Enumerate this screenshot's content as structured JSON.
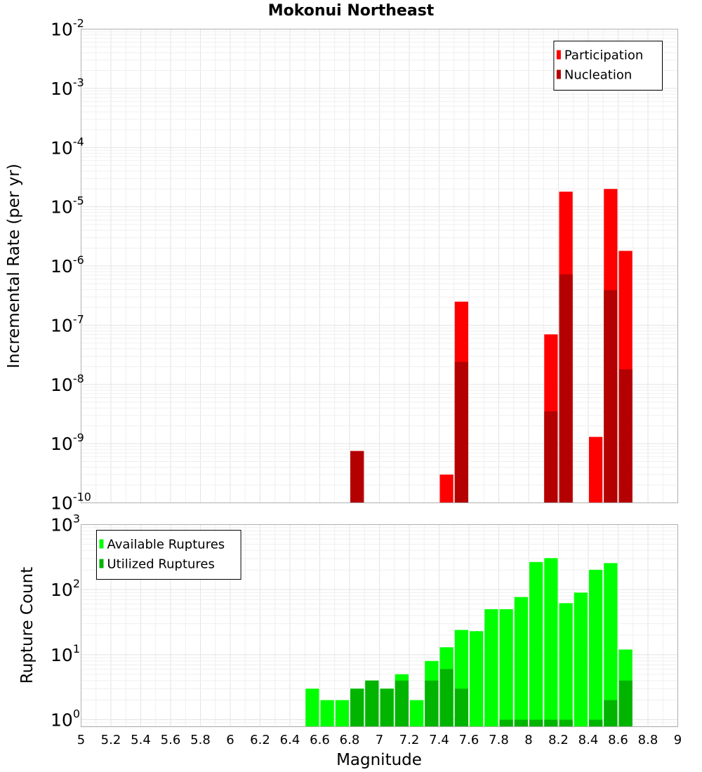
{
  "chart_data": [
    {
      "type": "bar",
      "title": "Mokonui Northeast",
      "xlabel": "",
      "ylabel": "Incremental Rate (per yr)",
      "xlim": [
        5,
        9
      ],
      "ylim": [
        1e-10,
        0.01
      ],
      "yscale": "log",
      "bin_width": 0.1,
      "grid": true,
      "legend": "top-right",
      "x": [
        6.85,
        7.45,
        7.55,
        8.15,
        8.25,
        8.45,
        8.55,
        8.65
      ],
      "series": [
        {
          "name": "Participation",
          "color": "#ff0000",
          "values": [
            7.5e-10,
            3e-10,
            2.5e-07,
            7e-08,
            1.8e-05,
            1.3e-09,
            2e-05,
            1.8e-06
          ]
        },
        {
          "name": "Nucleation",
          "color": "#b40000",
          "values": [
            7.5e-10,
            null,
            2.4e-08,
            3.5e-09,
            7.2e-07,
            null,
            3.9e-07,
            1.8e-08
          ]
        }
      ],
      "yticks": [
        {
          "base": "10",
          "exp": "-2",
          "value": 0.01
        },
        {
          "base": "10",
          "exp": "-3",
          "value": 0.001
        },
        {
          "base": "10",
          "exp": "-4",
          "value": 0.0001
        },
        {
          "base": "10",
          "exp": "-5",
          "value": 1e-05
        },
        {
          "base": "10",
          "exp": "-6",
          "value": 1e-06
        },
        {
          "base": "10",
          "exp": "-7",
          "value": 1e-07
        },
        {
          "base": "10",
          "exp": "-8",
          "value": 1e-08
        },
        {
          "base": "10",
          "exp": "-9",
          "value": 1e-09
        },
        {
          "base": "10",
          "exp": "-10",
          "value": 1e-10
        }
      ]
    },
    {
      "type": "bar",
      "title": "",
      "xlabel": "Magnitude",
      "ylabel": "Rupture Count",
      "xlim": [
        5,
        9
      ],
      "ylim": [
        0.78,
        1000
      ],
      "yscale": "log",
      "bin_width": 0.1,
      "grid": true,
      "legend": "top-left",
      "x": [
        6.55,
        6.65,
        6.75,
        6.85,
        6.95,
        7.05,
        7.15,
        7.25,
        7.35,
        7.45,
        7.55,
        7.65,
        7.75,
        7.85,
        7.95,
        8.05,
        8.15,
        8.25,
        8.35,
        8.45,
        8.55,
        8.65
      ],
      "series": [
        {
          "name": "Available Ruptures",
          "color": "#00ff00",
          "values": [
            3,
            2,
            2,
            3,
            4,
            3,
            5,
            2,
            8,
            13,
            24,
            23,
            50,
            50,
            77,
            266,
            305,
            62,
            90,
            202,
            256,
            12
          ]
        },
        {
          "name": "Utilized Ruptures",
          "color": "#00b400",
          "values": [
            null,
            null,
            null,
            3,
            4,
            3,
            4,
            null,
            4,
            6,
            3,
            null,
            null,
            1,
            1,
            1,
            1,
            1,
            null,
            1,
            2,
            4
          ]
        }
      ],
      "xticks": [
        "5",
        "5.2",
        "5.4",
        "5.6",
        "5.8",
        "6",
        "6.2",
        "6.4",
        "6.6",
        "6.8",
        "7",
        "7.2",
        "7.4",
        "7.6",
        "7.8",
        "8",
        "8.2",
        "8.4",
        "8.6",
        "8.8",
        "9"
      ],
      "yticks": [
        {
          "base": "10",
          "exp": "3",
          "value": 1000
        },
        {
          "base": "10",
          "exp": "2",
          "value": 100
        },
        {
          "base": "10",
          "exp": "1",
          "value": 10
        },
        {
          "base": "10",
          "exp": "0",
          "value": 1
        }
      ]
    }
  ]
}
